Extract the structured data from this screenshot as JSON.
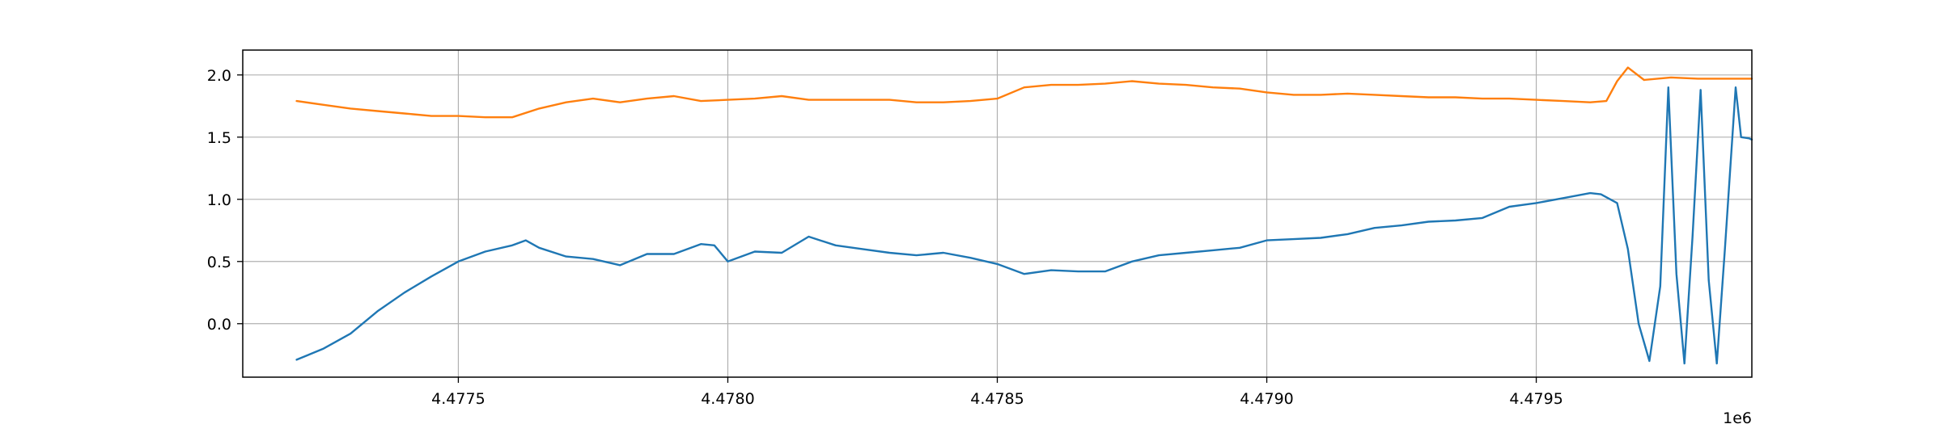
{
  "chart_data": {
    "type": "line",
    "title": "",
    "xlabel": "",
    "ylabel": "",
    "x_offset_label": "1e6",
    "xlim": [
      4477100,
      4479900
    ],
    "ylim": [
      -0.43,
      2.2
    ],
    "x_ticks": [
      4477500,
      4478000,
      4478500,
      4479000,
      4479500
    ],
    "x_tick_labels": [
      "4.4775",
      "4.4780",
      "4.4785",
      "4.4790",
      "4.4795"
    ],
    "y_ticks": [
      0.0,
      0.5,
      1.0,
      1.5,
      2.0
    ],
    "y_tick_labels": [
      "0.0",
      "0.5",
      "1.0",
      "1.5",
      "2.0"
    ],
    "grid": true,
    "legend": false,
    "series": [
      {
        "color": "#1f77b4",
        "x": [
          4477200,
          4477250,
          4477300,
          4477350,
          4477400,
          4477450,
          4477500,
          4477550,
          4477600,
          4477625,
          4477650,
          4477700,
          4477750,
          4477800,
          4477850,
          4477900,
          4477950,
          4477975,
          4478000,
          4478050,
          4478100,
          4478150,
          4478200,
          4478250,
          4478300,
          4478350,
          4478400,
          4478450,
          4478500,
          4478550,
          4478600,
          4478650,
          4478700,
          4478750,
          4478800,
          4478850,
          4478900,
          4478950,
          4479000,
          4479050,
          4479100,
          4479150,
          4479200,
          4479250,
          4479300,
          4479350,
          4479400,
          4479450,
          4479500,
          4479550,
          4479600,
          4479620,
          4479650,
          4479670,
          4479690,
          4479710,
          4479730,
          4479745,
          4479760,
          4479775,
          4479790,
          4479805,
          4479820,
          4479835,
          4479850,
          4479870,
          4479880,
          4479895,
          4479900
        ],
        "y": [
          -0.29,
          -0.2,
          -0.08,
          0.1,
          0.25,
          0.38,
          0.5,
          0.58,
          0.63,
          0.67,
          0.61,
          0.54,
          0.52,
          0.47,
          0.56,
          0.56,
          0.64,
          0.63,
          0.5,
          0.58,
          0.57,
          0.7,
          0.63,
          0.6,
          0.57,
          0.55,
          0.57,
          0.53,
          0.48,
          0.4,
          0.43,
          0.42,
          0.42,
          0.5,
          0.55,
          0.57,
          0.59,
          0.61,
          0.67,
          0.68,
          0.69,
          0.72,
          0.77,
          0.79,
          0.82,
          0.83,
          0.85,
          0.94,
          0.97,
          1.01,
          1.05,
          1.04,
          0.97,
          0.6,
          0.0,
          -0.3,
          0.3,
          1.9,
          0.4,
          -0.32,
          0.7,
          1.88,
          0.35,
          -0.32,
          0.6,
          1.9,
          1.5,
          1.49,
          1.48
        ]
      },
      {
        "color": "#ff7f0e",
        "x": [
          4477200,
          4477250,
          4477300,
          4477350,
          4477400,
          4477450,
          4477500,
          4477550,
          4477600,
          4477650,
          4477700,
          4477750,
          4477800,
          4477850,
          4477900,
          4477950,
          4478000,
          4478050,
          4478100,
          4478150,
          4478200,
          4478250,
          4478300,
          4478350,
          4478400,
          4478450,
          4478500,
          4478550,
          4478600,
          4478650,
          4478700,
          4478750,
          4478800,
          4478850,
          4478900,
          4478950,
          4479000,
          4479050,
          4479100,
          4479150,
          4479200,
          4479250,
          4479300,
          4479350,
          4479400,
          4479450,
          4479500,
          4479550,
          4479600,
          4479630,
          4479650,
          4479670,
          4479700,
          4479750,
          4479800,
          4479850,
          4479900
        ],
        "y": [
          1.79,
          1.76,
          1.73,
          1.71,
          1.69,
          1.67,
          1.67,
          1.66,
          1.66,
          1.73,
          1.78,
          1.81,
          1.78,
          1.81,
          1.83,
          1.79,
          1.8,
          1.81,
          1.83,
          1.8,
          1.8,
          1.8,
          1.8,
          1.78,
          1.78,
          1.79,
          1.81,
          1.9,
          1.92,
          1.92,
          1.93,
          1.95,
          1.93,
          1.92,
          1.9,
          1.89,
          1.86,
          1.84,
          1.84,
          1.85,
          1.84,
          1.83,
          1.82,
          1.82,
          1.81,
          1.81,
          1.8,
          1.79,
          1.78,
          1.79,
          1.95,
          2.06,
          1.96,
          1.98,
          1.97,
          1.97,
          1.97
        ]
      }
    ]
  }
}
